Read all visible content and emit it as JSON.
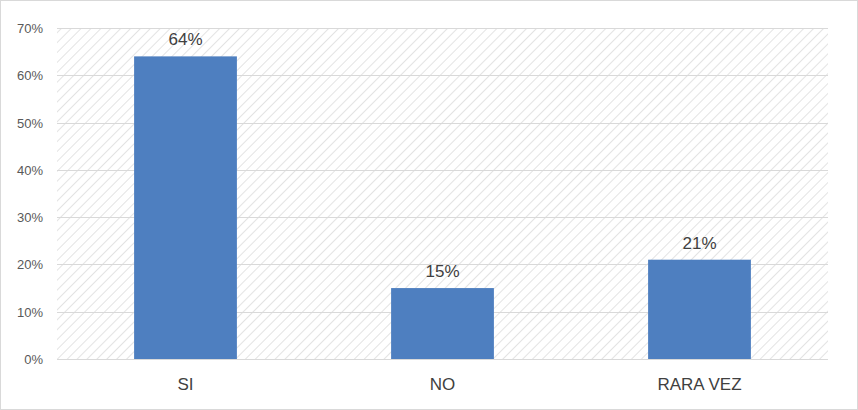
{
  "chart_data": {
    "type": "bar",
    "categories": [
      "SI",
      "NO",
      "RARA VEZ"
    ],
    "values": [
      64,
      15,
      21
    ],
    "value_labels": [
      "64%",
      "15%",
      "21%"
    ],
    "data_labels": true,
    "color": "#4e7fc0",
    "ylim": [
      0,
      70
    ],
    "yticks": [
      {
        "value": 0,
        "label": "0%"
      },
      {
        "value": 10,
        "label": "10%"
      },
      {
        "value": 20,
        "label": "20%"
      },
      {
        "value": 30,
        "label": "30%"
      },
      {
        "value": 40,
        "label": "40%"
      },
      {
        "value": 50,
        "label": "50%"
      },
      {
        "value": 60,
        "label": "60%"
      },
      {
        "value": 70,
        "label": "70%"
      }
    ],
    "grid": true
  }
}
